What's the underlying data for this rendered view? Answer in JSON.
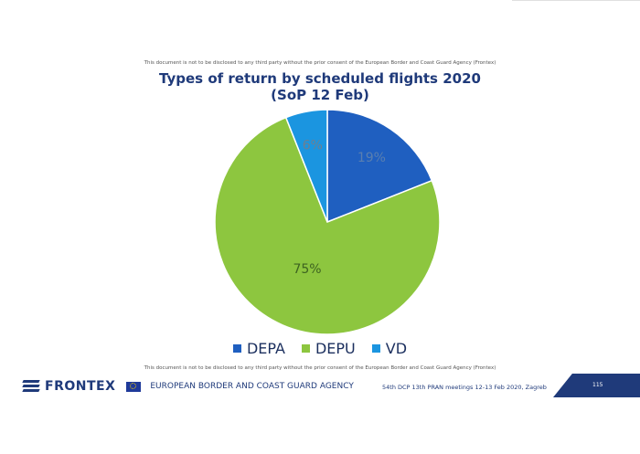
{
  "disclaimer_top": "This document is not to be disclosed to any third party without the prior consent of the European Border and Coast Guard Agency (Frontex)",
  "disclaimer_bottom": "This document is not to be disclosed to any third party without the prior consent of the European Border and Coast Guard Agency (Frontex)",
  "chart_data": {
    "type": "pie",
    "title": "Types of return by scheduled flights 2020",
    "subtitle": "(SoP 12 Feb)",
    "slices": [
      {
        "label": "DEPA",
        "value": 19,
        "display": "19%",
        "color": "#1f5fc0",
        "text_color": "#5a7fb0"
      },
      {
        "label": "DEPU",
        "value": 75,
        "display": "75%",
        "color": "#8dc63f",
        "text_color": "#3d6320"
      },
      {
        "label": "VD",
        "value": 6,
        "display": "6%",
        "color": "#1b95e0",
        "text_color": "#6f7f8f"
      }
    ],
    "legend_position": "bottom"
  },
  "footer": {
    "logo_text": "FRONTEX",
    "agency": "EUROPEAN BORDER AND COAST GUARD AGENCY",
    "meeting": "54th DCP 13th PRAN meetings 12-13 Feb 2020, Zagreb",
    "page": "115"
  }
}
